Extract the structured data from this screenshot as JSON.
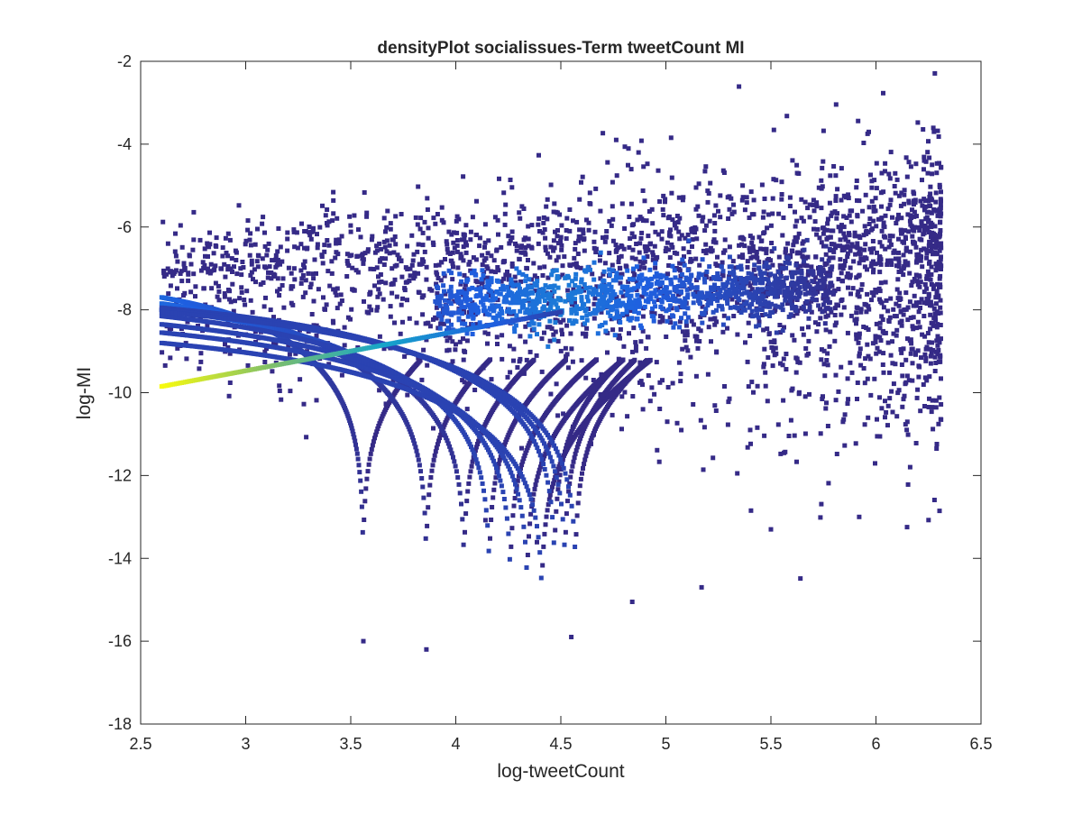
{
  "chart_data": {
    "type": "scatter",
    "title": "densityPlot socialissues-Term tweetCount MI",
    "xlabel": "log-tweetCount",
    "ylabel": "log-MI",
    "xlim": [
      2.5,
      6.5
    ],
    "ylim": [
      -18,
      -2
    ],
    "x_ticks": [
      "2.5",
      "3",
      "3.5",
      "4",
      "4.5",
      "5",
      "5.5",
      "6",
      "6.5"
    ],
    "y_ticks": [
      "-18",
      "-16",
      "-14",
      "-12",
      "-10",
      "-8",
      "-6",
      "-4",
      "-2"
    ],
    "grid": false,
    "legend": "none",
    "colormap": [
      "#352a87",
      "#1f5fe0",
      "#16a6c9",
      "#7fbf6a",
      "#f9fb0e"
    ],
    "cloud": {
      "x_range": [
        2.6,
        6.31
      ],
      "y_center_at_x_start": -7.2,
      "y_center_at_x_end": -6.9,
      "spread": 0.9
    },
    "curve_family": {
      "x_start": 2.6,
      "left_intercepts": [
        -7.7,
        -7.85,
        -8.0,
        -8.15,
        -8.35,
        -8.55,
        -8.8
      ],
      "singularities_x": [
        3.56,
        3.86,
        4.04,
        4.16,
        4.26,
        4.34,
        4.41,
        4.47,
        4.52,
        4.57
      ],
      "rising_line": {
        "x": [
          2.6,
          4.5
        ],
        "y": [
          -9.85,
          -8.05
        ]
      }
    },
    "outliers": [
      {
        "x": 5.96,
        "y": -3.75
      },
      {
        "x": 4.87,
        "y": -4.2
      },
      {
        "x": 3.56,
        "y": -16.0
      },
      {
        "x": 3.86,
        "y": -16.2
      },
      {
        "x": 4.55,
        "y": -15.9
      },
      {
        "x": 4.84,
        "y": -15.05
      },
      {
        "x": 5.17,
        "y": -14.7
      },
      {
        "x": 5.5,
        "y": -13.3
      },
      {
        "x": 5.92,
        "y": -13.0
      },
      {
        "x": 6.31,
        "y": -10.65
      }
    ]
  }
}
